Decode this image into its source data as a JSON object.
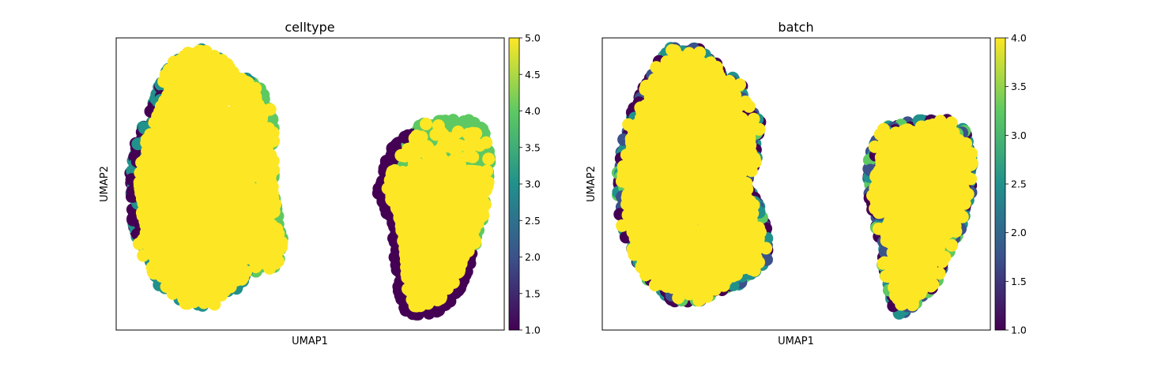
{
  "colors": {
    "viridis": [
      "#440154",
      "#3b528b",
      "#21918c",
      "#5ec962",
      "#fde725"
    ]
  },
  "chart_data": [
    {
      "type": "scatter",
      "title": "celltype",
      "xlabel": "UMAP1",
      "ylabel": "UMAP2",
      "xticks": false,
      "yticks": false,
      "grid": false,
      "colorbar": {
        "min": 1.0,
        "max": 5.0,
        "ticks": [
          "1.0",
          "1.5",
          "2.0",
          "2.5",
          "3.0",
          "3.5",
          "4.0",
          "4.5",
          "5.0"
        ],
        "colormap": "viridis",
        "placement": "right"
      },
      "dominant_value": 5.0,
      "clusters": [
        {
          "name": "left",
          "values_present": [
            1,
            2,
            3,
            4,
            5
          ],
          "dominant": 5
        },
        {
          "name": "right",
          "values_present": [
            1,
            4,
            5
          ],
          "dominant": 5
        }
      ]
    },
    {
      "type": "scatter",
      "title": "batch",
      "xlabel": "UMAP1",
      "ylabel": "UMAP2",
      "xticks": false,
      "yticks": false,
      "grid": false,
      "colorbar": {
        "min": 1.0,
        "max": 4.0,
        "ticks": [
          "1.0",
          "1.5",
          "2.0",
          "2.5",
          "3.0",
          "3.5",
          "4.0"
        ],
        "colormap": "viridis",
        "placement": "right"
      },
      "dominant_value": 4.0,
      "clusters": [
        {
          "name": "left",
          "values_present": [
            1,
            2,
            3,
            4
          ],
          "dominant": 4
        },
        {
          "name": "right",
          "values_present": [
            1,
            2,
            3,
            4
          ],
          "dominant": 4
        }
      ]
    }
  ]
}
